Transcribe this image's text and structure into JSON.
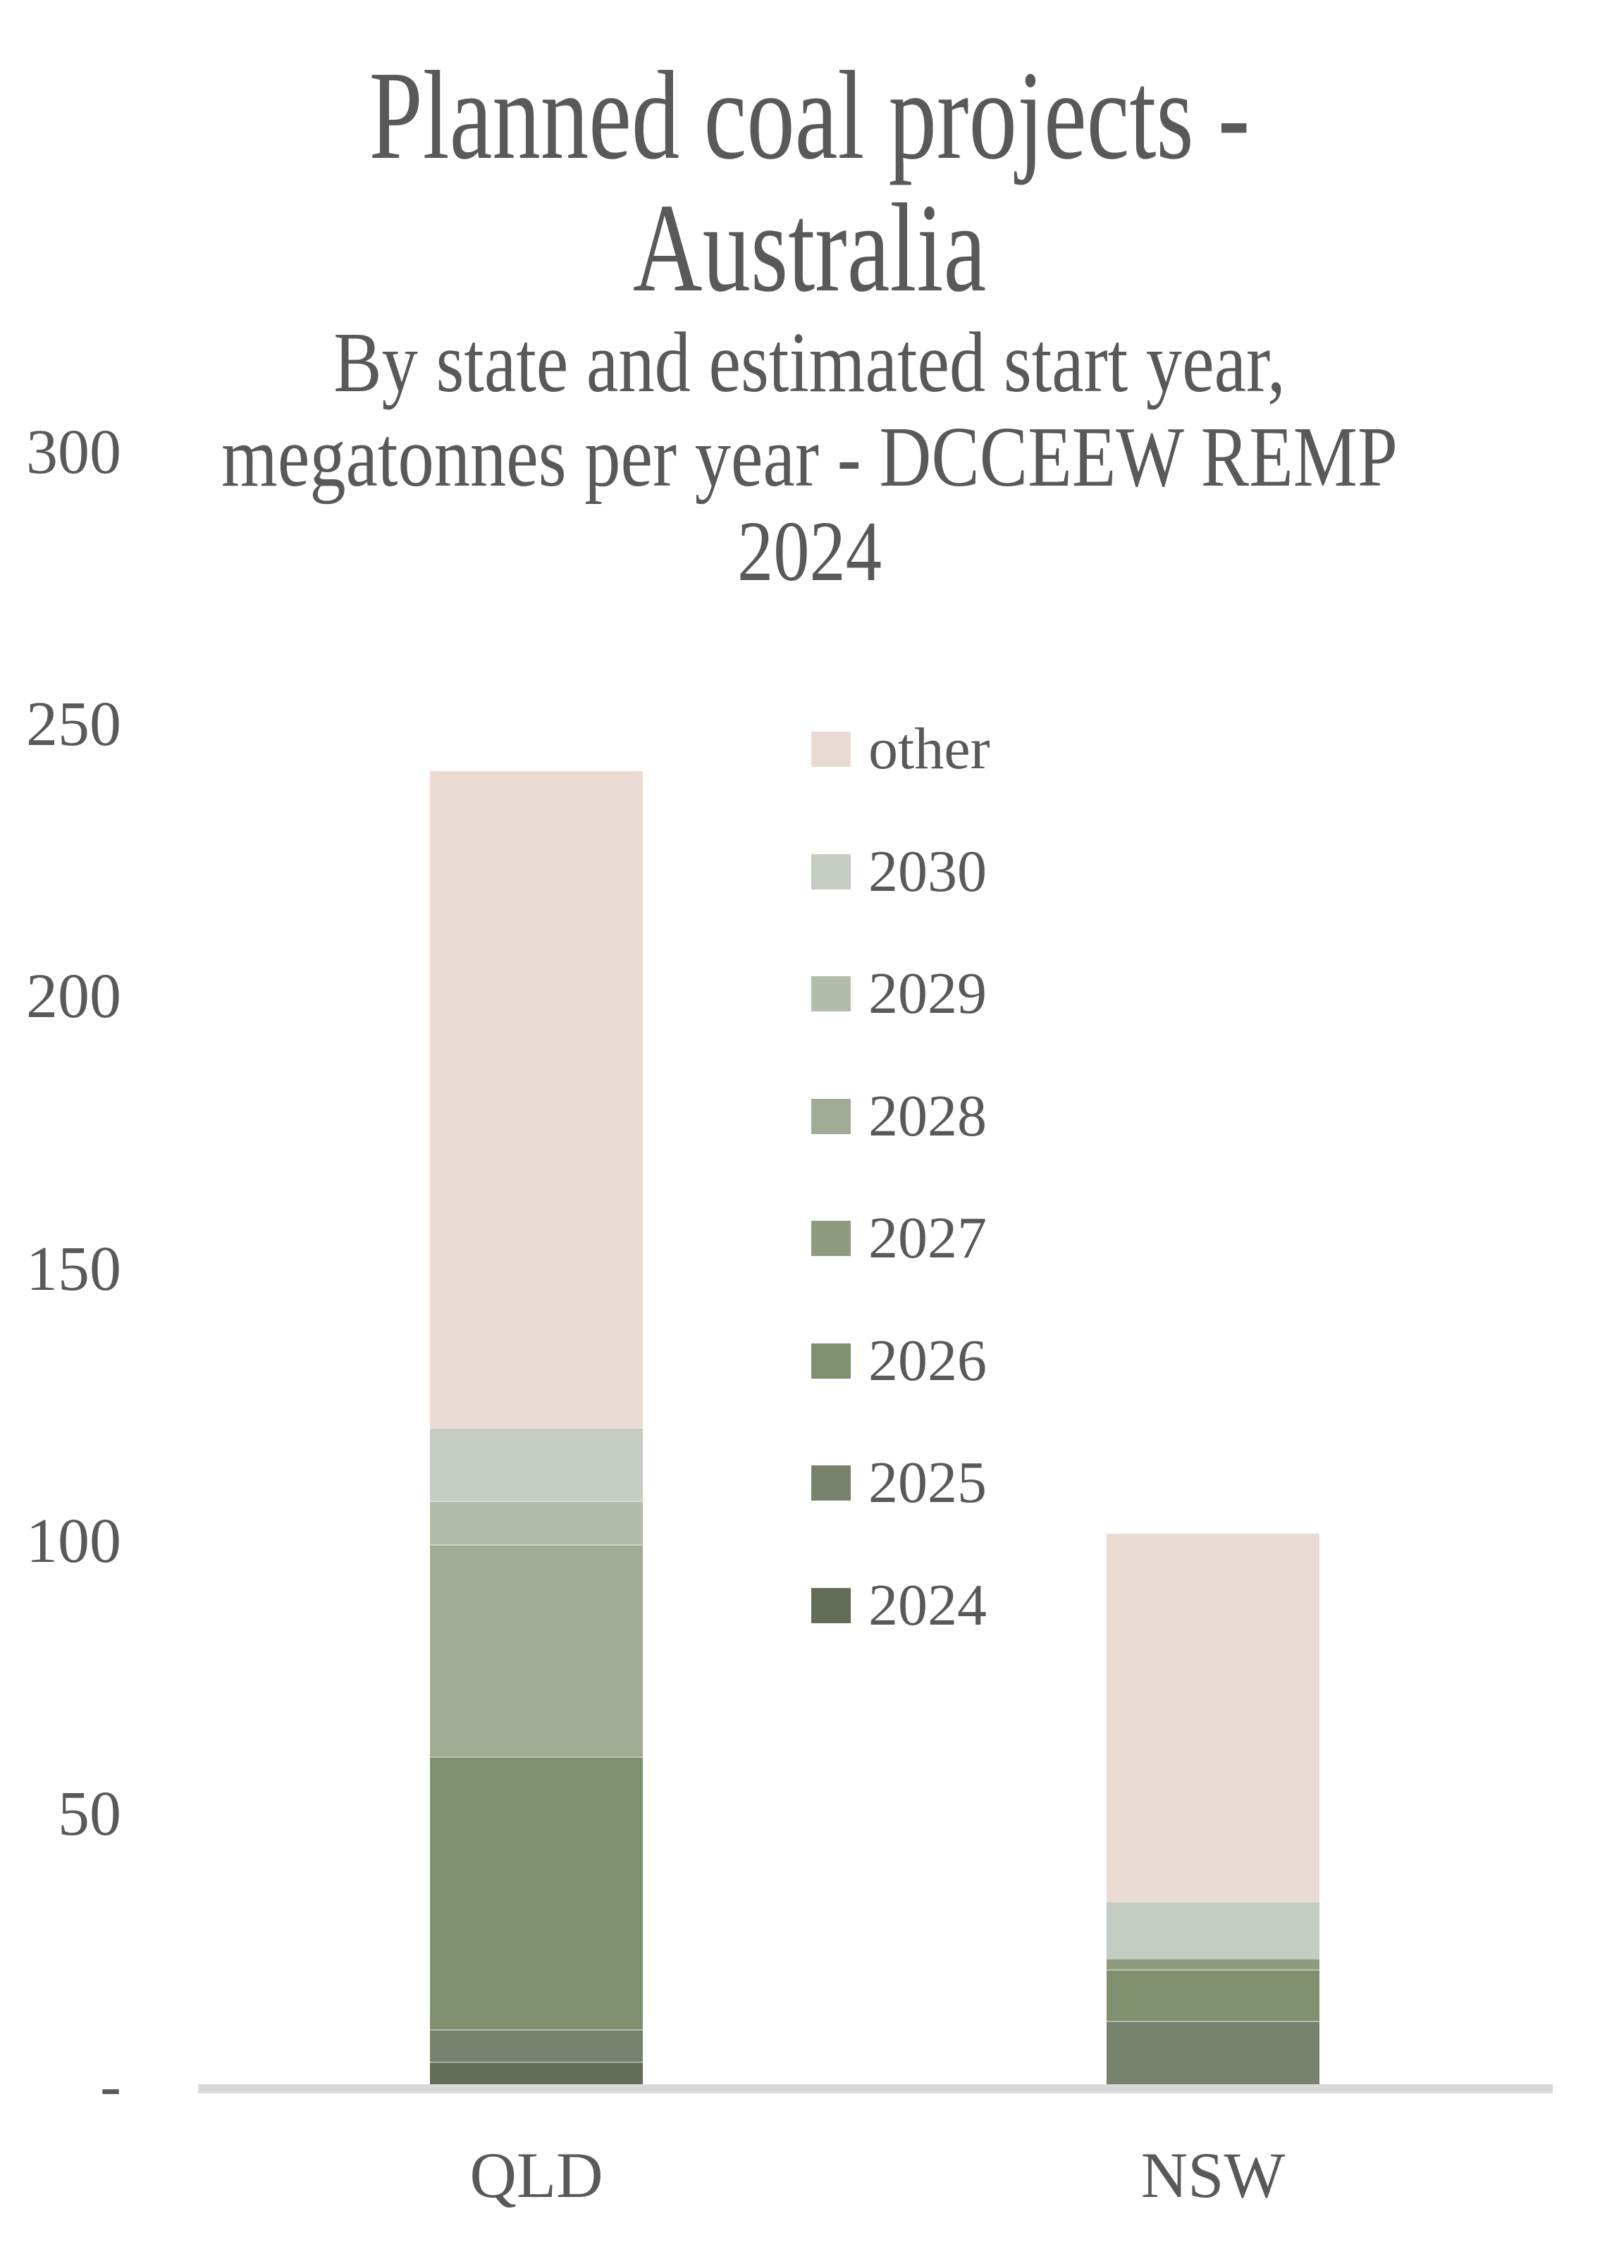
{
  "title_lines": [
    "Planned coal projects -",
    "Australia"
  ],
  "subtitle_lines": [
    "By state and estimated start year,",
    "megatonnes per year - DCCEEW REMP",
    "2024"
  ],
  "y_axis": {
    "ticks": [
      {
        "label": "300",
        "value": 300
      },
      {
        "label": "250",
        "value": 250
      },
      {
        "label": "200",
        "value": 200
      },
      {
        "label": "150",
        "value": 150
      },
      {
        "label": "100",
        "value": 100
      },
      {
        "label": "50",
        "value": 50
      },
      {
        "label": "-",
        "value": 0
      }
    ]
  },
  "x_axis": {
    "categories": [
      "QLD",
      "NSW"
    ]
  },
  "legend": {
    "items": [
      {
        "label": "other",
        "color": "#E9DBD4"
      },
      {
        "label": "2030",
        "color": "#C5CCC1"
      },
      {
        "label": "2029",
        "color": "#B3BCAB"
      },
      {
        "label": "2028",
        "color": "#A1AB94"
      },
      {
        "label": "2027",
        "color": "#8E9B7F"
      },
      {
        "label": "2026",
        "color": "#80906E"
      },
      {
        "label": "2025",
        "color": "#76826B"
      },
      {
        "label": "2024",
        "color": "#636D55"
      }
    ]
  },
  "chart_data": {
    "type": "bar",
    "stacked": true,
    "title": "Planned coal projects - Australia",
    "subtitle": "By state and estimated start year, megatonnes per year - DCCEEW REMP 2024",
    "unit": "megatonnes per year",
    "categories": [
      "QLD",
      "NSW"
    ],
    "series": [
      {
        "name": "2024",
        "color": "#636D55",
        "values": [
          4.5,
          0
        ]
      },
      {
        "name": "2025",
        "color": "#76826B",
        "values": [
          6,
          12
        ]
      },
      {
        "name": "2026",
        "color": "#80906E",
        "values": [
          50,
          9.5
        ]
      },
      {
        "name": "2027",
        "color": "#8E9B7F",
        "values": [
          0,
          2
        ]
      },
      {
        "name": "2028",
        "color": "#A1AB94",
        "values": [
          39,
          0
        ]
      },
      {
        "name": "2029",
        "color": "#B3BCAB",
        "values": [
          8,
          0
        ]
      },
      {
        "name": "2030",
        "color": "#C5CCC1",
        "values": [
          13.5,
          10.5
        ]
      },
      {
        "name": "other",
        "color": "#E9DBD4",
        "values": [
          120.5,
          67.5
        ]
      }
    ],
    "totals": [
      241.5,
      101.5
    ],
    "ylim": [
      0,
      300
    ],
    "y_ticks": [
      0,
      50,
      100,
      150,
      200,
      250,
      300
    ],
    "grid": false,
    "legend_position": "center-left-inside-plot"
  },
  "colors": {
    "text": "#595959",
    "axis_line": "#D9D9D9",
    "background": "#FFFFFF"
  }
}
